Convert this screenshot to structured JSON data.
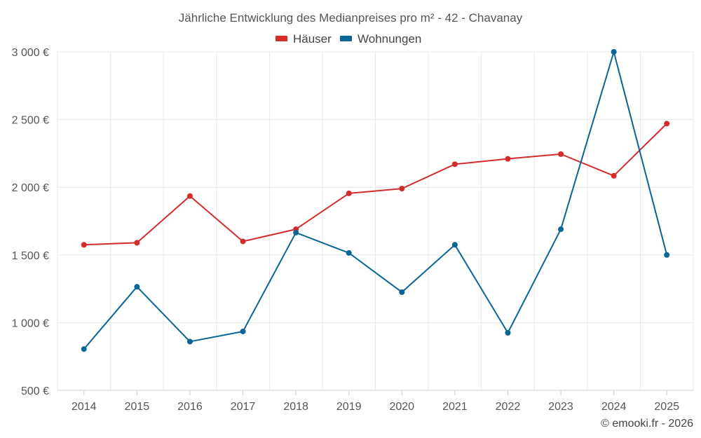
{
  "chart_data": {
    "type": "line",
    "title": "Jährliche Entwicklung des Medianpreises pro m² - 42 - Chavanay",
    "categories": [
      "2014",
      "2015",
      "2016",
      "2017",
      "2018",
      "2019",
      "2020",
      "2021",
      "2022",
      "2023",
      "2024",
      "2025"
    ],
    "series": [
      {
        "name": "Häuser",
        "color": "#d42b2b",
        "values": [
          1575,
          1590,
          1935,
          1600,
          1690,
          1955,
          1990,
          2170,
          2210,
          2245,
          2085,
          2470
        ]
      },
      {
        "name": "Wohnungen",
        "color": "#0a6597",
        "values": [
          805,
          1265,
          860,
          935,
          1665,
          1515,
          1225,
          1575,
          925,
          1690,
          3000,
          1500
        ]
      }
    ],
    "y_ticks": [
      500,
      1000,
      1500,
      2000,
      2500,
      3000
    ],
    "y_tick_labels": [
      "500 €",
      "1 000 €",
      "1 500 €",
      "2 000 €",
      "2 500 €",
      "3 000 €"
    ],
    "ylim": [
      500,
      3000
    ],
    "legend_position": "top-center",
    "grid": true,
    "credit": "© emooki.fr - 2026"
  }
}
